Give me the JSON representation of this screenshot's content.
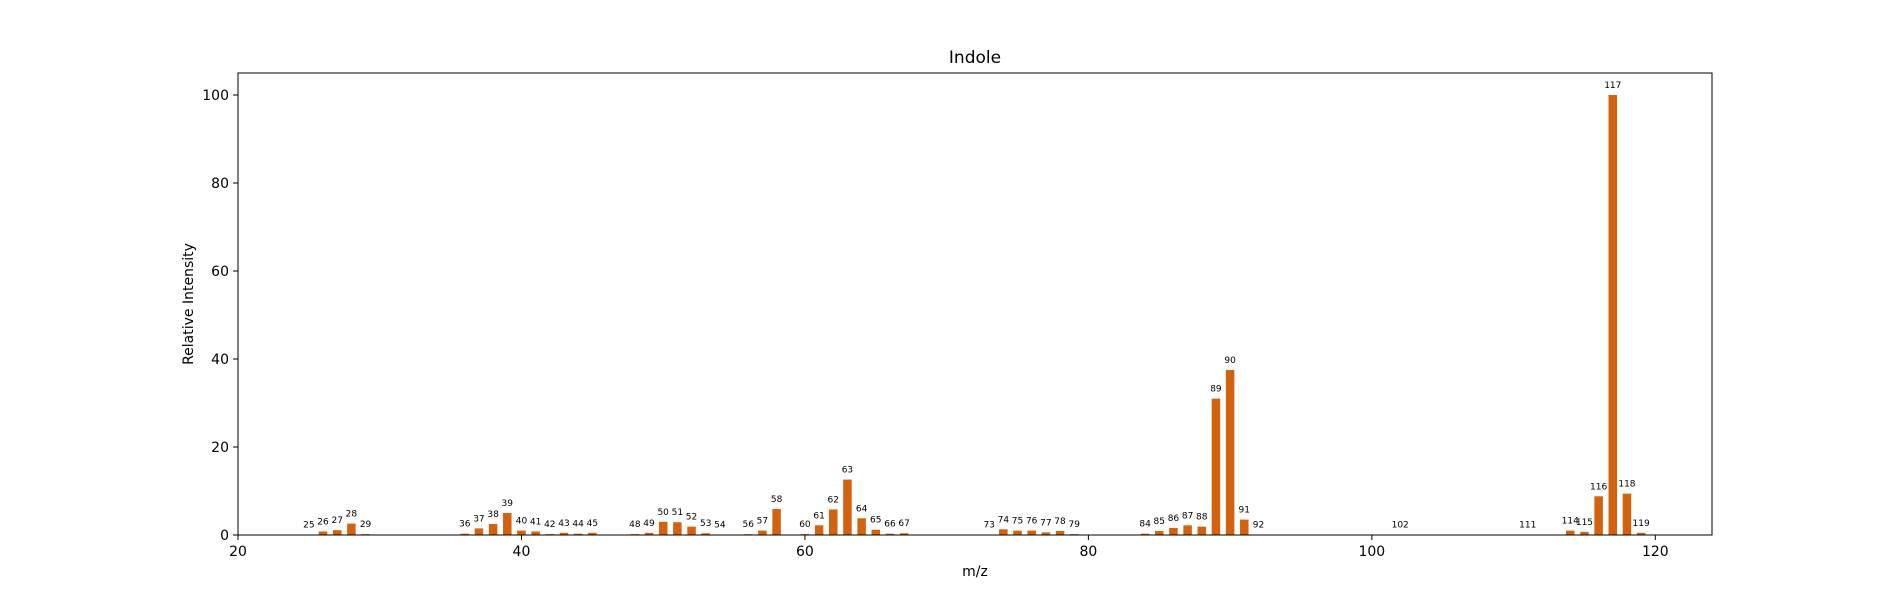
{
  "chart_data": {
    "type": "bar",
    "title": "Indole",
    "xlabel": "m/z",
    "ylabel": "Relative Intensity",
    "xlim": [
      20,
      124
    ],
    "ylim": [
      0,
      105
    ],
    "xticks": [
      20,
      40,
      60,
      80,
      100,
      120
    ],
    "yticks": [
      0,
      20,
      40,
      60,
      80,
      100
    ],
    "bar_color": "#d2620e",
    "grid": false,
    "legend": "none",
    "x": [
      25,
      26,
      27,
      28,
      29,
      36,
      37,
      38,
      39,
      40,
      41,
      42,
      43,
      44,
      45,
      48,
      49,
      50,
      51,
      52,
      53,
      54,
      56,
      57,
      58,
      60,
      61,
      62,
      63,
      64,
      65,
      66,
      67,
      73,
      74,
      75,
      76,
      77,
      78,
      79,
      84,
      85,
      86,
      87,
      88,
      89,
      90,
      91,
      92,
      102,
      111,
      114,
      115,
      116,
      117,
      118,
      119
    ],
    "values": [
      0.1,
      0.8,
      1.1,
      2.6,
      0.2,
      0.3,
      1.5,
      2.5,
      5.0,
      1.0,
      0.8,
      0.2,
      0.5,
      0.3,
      0.5,
      0.2,
      0.5,
      3.0,
      2.9,
      1.9,
      0.4,
      0.1,
      0.2,
      1.0,
      5.9,
      0.2,
      2.2,
      5.8,
      12.6,
      3.8,
      1.2,
      0.3,
      0.4,
      0.1,
      1.3,
      1.0,
      1.0,
      0.6,
      0.9,
      0.2,
      0.3,
      0.9,
      1.6,
      2.2,
      1.9,
      31.0,
      37.5,
      3.5,
      0.1,
      0.1,
      0.1,
      1.0,
      0.7,
      8.8,
      100.0,
      9.4,
      0.5
    ],
    "labels": [
      "25",
      "26",
      "27",
      "28",
      "29",
      "36",
      "37",
      "38",
      "39",
      "40",
      "41",
      "42",
      "43",
      "44",
      "45",
      "48",
      "49",
      "50",
      "51",
      "52",
      "53",
      "54",
      "56",
      "57",
      "58",
      "60",
      "61",
      "62",
      "63",
      "64",
      "65",
      "66",
      "67",
      "73",
      "74",
      "75",
      "76",
      "77",
      "78",
      "79",
      "84",
      "85",
      "86",
      "87",
      "88",
      "89",
      "90",
      "91",
      "92",
      "102",
      "111",
      "114",
      "115",
      "116",
      "117",
      "118",
      "119"
    ]
  }
}
